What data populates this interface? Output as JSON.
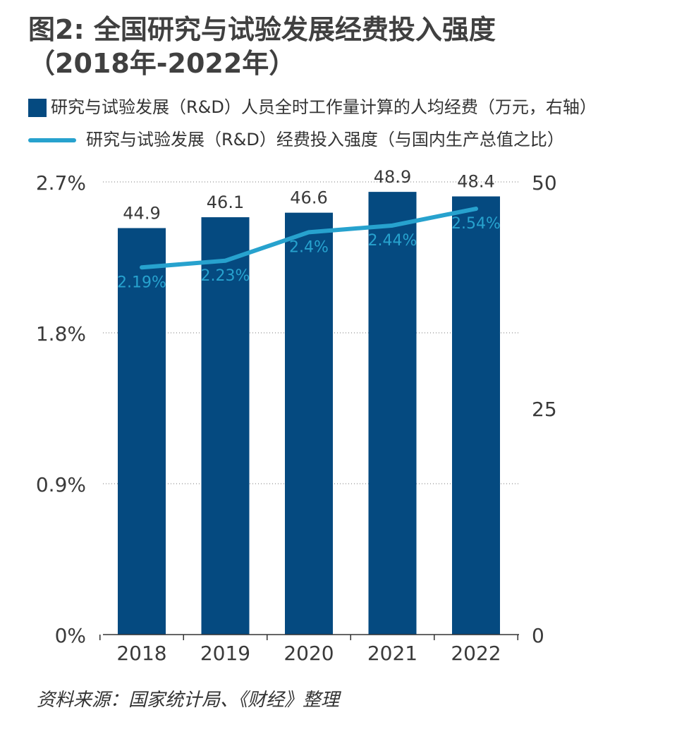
{
  "title_line1": "图2: 全国研究与试验发展经费投入强度",
  "title_line2": "（2018年-2022年）",
  "legend": {
    "bar_label": "研究与试验发展（R&D）人员全时工作量计算的人均经费（万元，右轴）",
    "line_label": "研究与试验发展（R&D）经费投入强度（与国内生产总值之比）"
  },
  "source": "资料来源：国家统计局、《财经》整理",
  "colors": {
    "bar": "#054a80",
    "line": "#27a2ce",
    "text": "#3a3a3a"
  },
  "chart_data": {
    "type": "bar+line",
    "categories": [
      "2018",
      "2019",
      "2020",
      "2021",
      "2022"
    ],
    "series": [
      {
        "name": "研究与试验发展（R&D）人员全时工作量计算的人均经费（万元，右轴）",
        "type": "bar",
        "axis": "right",
        "values": [
          44.9,
          46.1,
          46.6,
          48.9,
          48.4
        ],
        "labels": [
          "44.9",
          "46.1",
          "46.6",
          "48.9",
          "48.4"
        ]
      },
      {
        "name": "研究与试验发展（R&D）经费投入强度（与国内生产总值之比）",
        "type": "line",
        "axis": "left",
        "values": [
          2.19,
          2.23,
          2.4,
          2.44,
          2.54
        ],
        "labels": [
          "2.19%",
          "2.23%",
          "2.4%",
          "2.44%",
          "2.54%"
        ]
      }
    ],
    "left_axis": {
      "min": 0,
      "max": 2.7,
      "ticks": [
        "0%",
        "0.9%",
        "1.8%",
        "2.7%"
      ],
      "tick_values": [
        0,
        0.9,
        1.8,
        2.7
      ]
    },
    "right_axis": {
      "min": 0,
      "max": 50,
      "ticks": [
        "0",
        "25",
        "50"
      ],
      "tick_values": [
        0,
        25,
        50
      ]
    },
    "grid": "dotted horizontal"
  }
}
